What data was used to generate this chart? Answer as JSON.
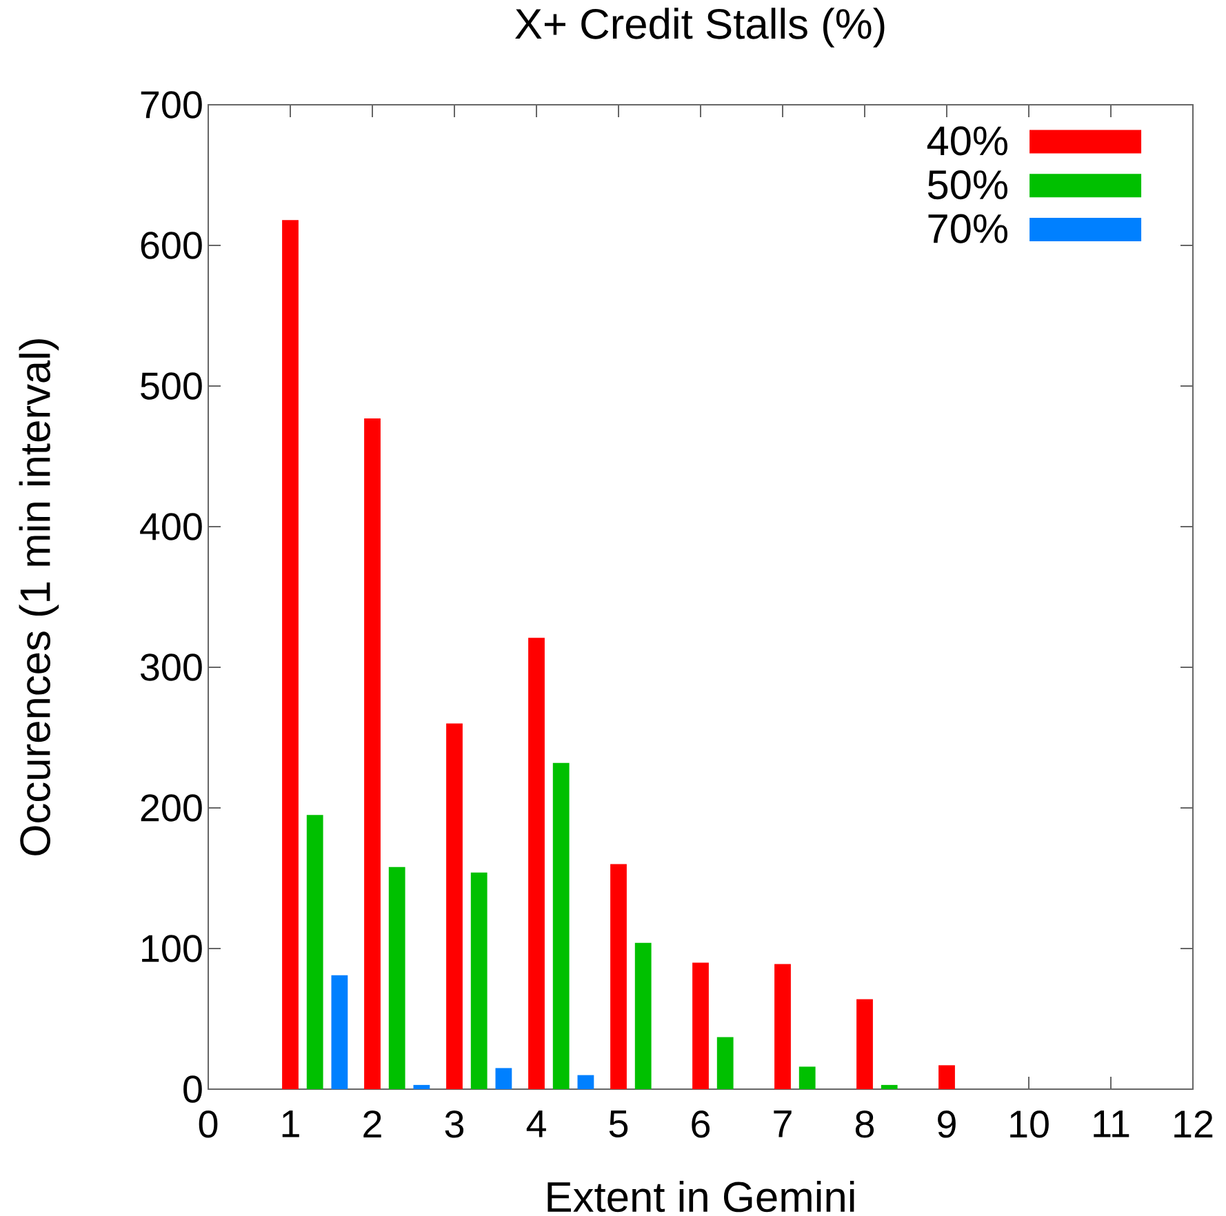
{
  "chart_data": {
    "type": "bar",
    "title": "X+ Credit Stalls (%)",
    "xlabel": "Extent in Gemini",
    "ylabel": "Occurences (1 min interval)",
    "xlim": [
      0,
      12
    ],
    "xticks": [
      0,
      1,
      2,
      3,
      4,
      5,
      6,
      7,
      8,
      9,
      10,
      11,
      12
    ],
    "ylim": [
      0,
      700
    ],
    "yticks": [
      0,
      100,
      200,
      300,
      400,
      500,
      600,
      700
    ],
    "legend": "top right",
    "series": [
      {
        "name": "40%",
        "color": "#ff0000",
        "x": [
          1,
          2,
          3,
          4,
          5,
          6,
          7,
          8,
          9
        ],
        "values": [
          618,
          477,
          260,
          321,
          160,
          90,
          89,
          64,
          17
        ]
      },
      {
        "name": "50%",
        "color": "#00c000",
        "x": [
          1.3,
          2.3,
          3.3,
          4.3,
          5.3,
          6.3,
          7.3,
          8.3
        ],
        "values": [
          195,
          158,
          154,
          232,
          104,
          37,
          16,
          3
        ]
      },
      {
        "name": "70%",
        "color": "#0080ff",
        "x": [
          1.6,
          2.6,
          3.6,
          4.6
        ],
        "values": [
          81,
          3,
          15,
          10
        ]
      }
    ]
  }
}
